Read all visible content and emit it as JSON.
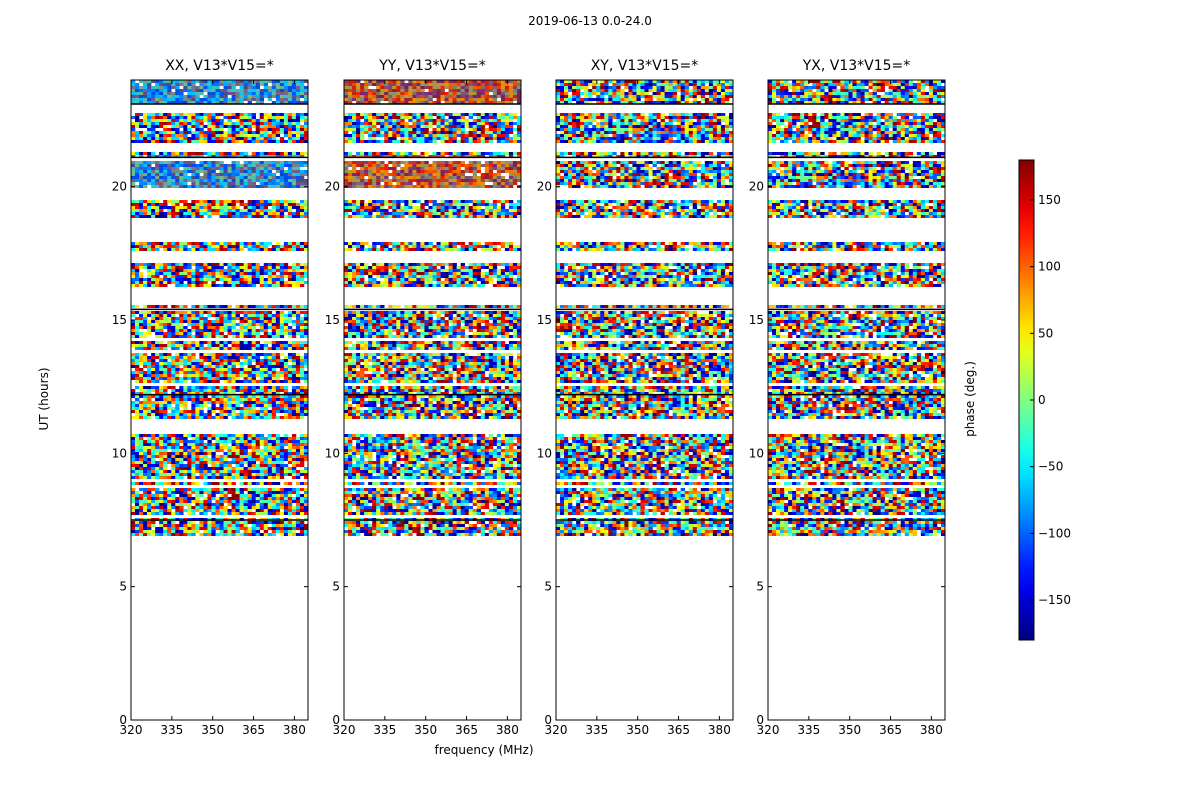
{
  "suptitle": "2019-06-13 0.0-24.0",
  "chart_data": {
    "type": "heatmap",
    "panels": [
      {
        "title": "XX, V13*V15=*",
        "tint": [
          0,
          140,
          255
        ],
        "tint_weight": 0.55
      },
      {
        "title": "YY, V13*V15=*",
        "tint": [
          230,
          60,
          0
        ],
        "tint_weight": 0.55
      },
      {
        "title": "XY, V13*V15=*",
        "tint": null,
        "tint_weight": 0
      },
      {
        "title": "YX, V13*V15=*",
        "tint": null,
        "tint_weight": 0
      }
    ],
    "xlabel": "frequency (MHz)",
    "ylabel": "UT (hours)",
    "xlim": [
      320,
      385
    ],
    "ylim": [
      0,
      24
    ],
    "xticks": [
      320,
      335,
      350,
      365,
      380
    ],
    "yticks": [
      0,
      5,
      10,
      15,
      20
    ],
    "data_start_ut": 6.9,
    "data_end_ut": 24.0,
    "flagged_bands_ut": [
      [
        15.7,
        16.3
      ],
      [
        17.2,
        17.6
      ],
      [
        18.0,
        18.9
      ],
      [
        19.6,
        20.0
      ],
      [
        21.3,
        21.7
      ],
      [
        22.8,
        23.1
      ],
      [
        11.0,
        11.2
      ],
      [
        10.8,
        10.95
      ]
    ],
    "colorbar": {
      "label": "phase (deg.)",
      "range": [
        -180,
        180
      ],
      "ticks": [
        -150,
        -100,
        -50,
        0,
        50,
        100,
        150
      ],
      "colormap": "jet"
    }
  }
}
